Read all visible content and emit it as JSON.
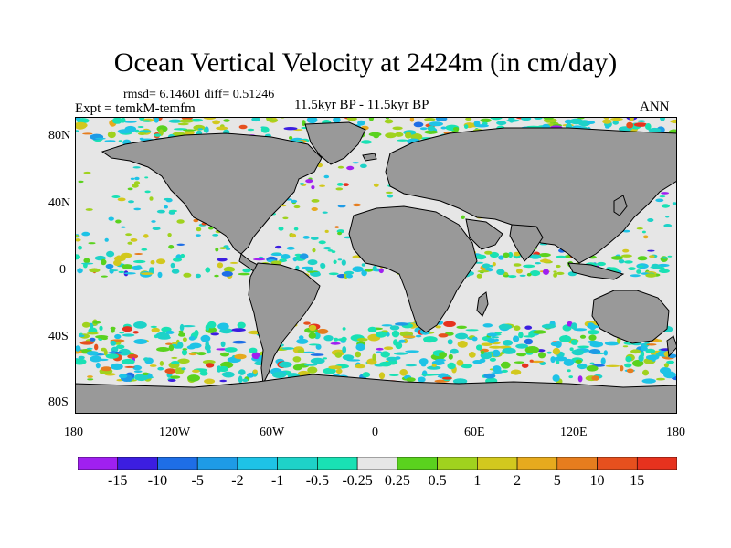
{
  "title": "Ocean Vertical Velocity at 2424m (in cm/day)",
  "stats_line": "rmsd= 6.14601 diff= 0.51246",
  "experiment": "Expt = temkM-temfm",
  "period": "11.5kyr BP - 11.5kyr BP",
  "season": "ANN",
  "axes": {
    "y_ticks": [
      "80N",
      "40N",
      "0",
      "40S",
      "80S"
    ],
    "x_ticks": [
      "180",
      "120W",
      "60W",
      "0",
      "60E",
      "120E",
      "180"
    ]
  },
  "colorbar": {
    "labels": [
      "-15",
      "-10",
      "-5",
      "-2",
      "-1",
      "-0.5",
      "-0.25",
      "0.25",
      "0.5",
      "1",
      "2",
      "5",
      "10",
      "15"
    ],
    "colors": [
      "#a020f0",
      "#3c1ee0",
      "#1e6ee6",
      "#1e9be6",
      "#1ec3e6",
      "#1ed2c8",
      "#19e1b4",
      "#e6e6e6",
      "#5ad21e",
      "#a0d21e",
      "#d2c81e",
      "#e6aa1e",
      "#e67d1e",
      "#e6501e",
      "#e6321e"
    ]
  },
  "map_colors": {
    "land": "#999999",
    "ocean_neutral": "#e6e6e6",
    "coastline": "#000000"
  }
}
